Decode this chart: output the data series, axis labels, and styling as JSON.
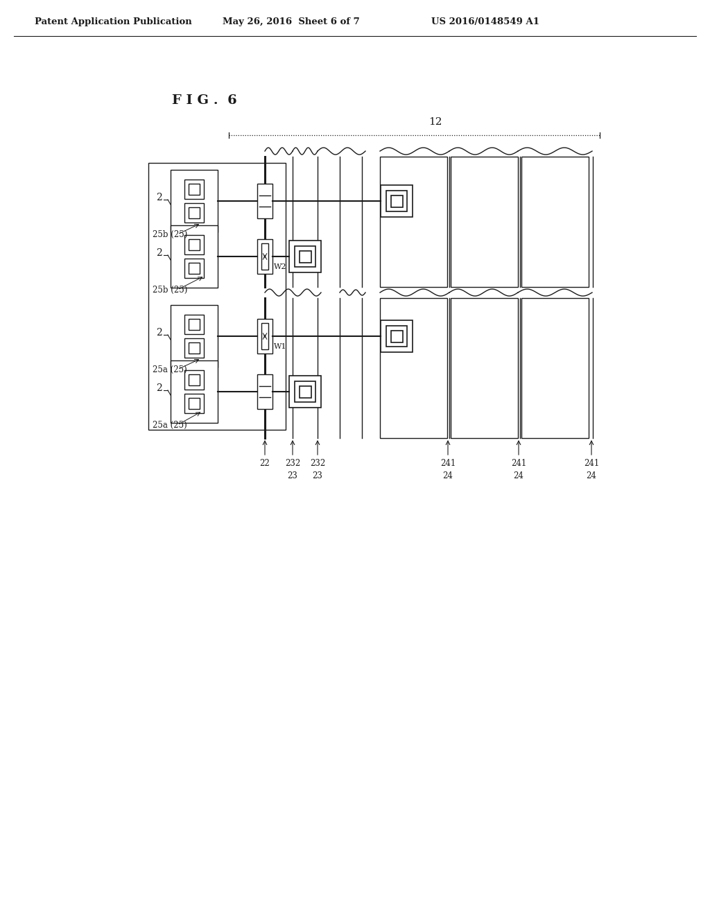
{
  "header_left": "Patent Application Publication",
  "header_mid": "May 26, 2016  Sheet 6 of 7",
  "header_right": "US 2016/0148549 A1",
  "fig_title": "F I G .  6",
  "bg_color": "#ffffff",
  "lc": "#1a1a1a",
  "fig_label_12": "12",
  "row_labels_left": [
    "2",
    "2",
    "2",
    "2"
  ],
  "group_labels": [
    "25b (25)",
    "25b (25)",
    "25a (25)",
    "25a (25)"
  ],
  "w_labels": [
    "W2",
    "W1"
  ],
  "bottom_col_labels": [
    "22",
    "23",
    "23",
    "232",
    "232",
    "24",
    "241",
    "24",
    "241",
    "24",
    "241"
  ]
}
